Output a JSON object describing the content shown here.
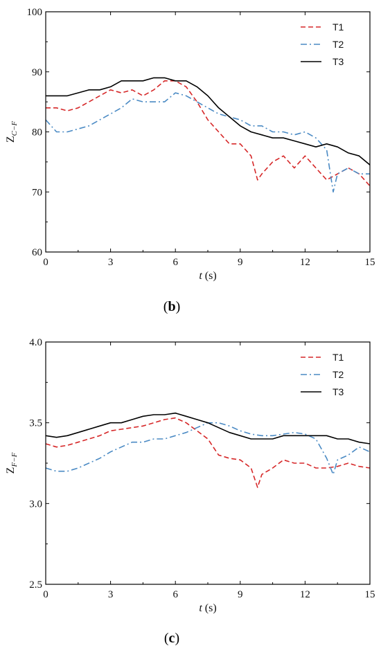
{
  "chart_data": [
    {
      "type": "line",
      "panel_label": "(b)",
      "xlabel": "t (s)",
      "ylabel": "Z_{C−F}",
      "xlim": [
        0,
        15
      ],
      "ylim": [
        60,
        100
      ],
      "xticks": [
        0,
        3,
        6,
        9,
        12,
        15
      ],
      "yticks": [
        60,
        70,
        80,
        90,
        100
      ],
      "legend_position": "top-right",
      "grid": false,
      "series": [
        {
          "name": "T1",
          "style": "dashed",
          "color": "#d62728",
          "x": [
            0,
            0.5,
            1,
            1.5,
            2,
            2.5,
            3,
            3.5,
            4,
            4.5,
            5,
            5.5,
            6,
            6.5,
            7,
            7.5,
            8,
            8.5,
            9,
            9.5,
            9.8,
            10,
            10.5,
            11,
            11.5,
            12,
            12.5,
            13,
            13.5,
            14,
            14.5,
            15
          ],
          "y": [
            84,
            84,
            83.5,
            84,
            85,
            86,
            87,
            86.5,
            87,
            86,
            87,
            88.5,
            88.5,
            87.5,
            85,
            82,
            80,
            78,
            78,
            76,
            72,
            73,
            75,
            76,
            74,
            76,
            74,
            72,
            73,
            74,
            73,
            71
          ]
        },
        {
          "name": "T2",
          "style": "dashdot",
          "color": "#4a8ac4",
          "x": [
            0,
            0.5,
            1,
            1.5,
            2,
            2.5,
            3,
            3.5,
            4,
            4.5,
            5,
            5.5,
            6,
            6.5,
            7,
            7.5,
            8,
            8.5,
            9,
            9.5,
            10,
            10.5,
            11,
            11.5,
            12,
            12.5,
            13,
            13.3,
            13.5,
            14,
            14.5,
            15
          ],
          "y": [
            82,
            80,
            80,
            80.5,
            81,
            82,
            83,
            84,
            85.5,
            85,
            85,
            85,
            86.5,
            86,
            85,
            84,
            83,
            82.5,
            82,
            81,
            81,
            80,
            80,
            79.5,
            80,
            79,
            77,
            70,
            73,
            74,
            73,
            73
          ]
        },
        {
          "name": "T3",
          "style": "solid",
          "color": "#000000",
          "x": [
            0,
            0.5,
            1,
            1.5,
            2,
            2.5,
            3,
            3.5,
            4,
            4.5,
            5,
            5.5,
            6,
            6.5,
            7,
            7.5,
            8,
            8.5,
            9,
            9.5,
            10,
            10.5,
            11,
            11.5,
            12,
            12.5,
            13,
            13.5,
            14,
            14.5,
            15
          ],
          "y": [
            86,
            86,
            86,
            86.5,
            87,
            87,
            87.5,
            88.5,
            88.5,
            88.5,
            89,
            89,
            88.5,
            88.5,
            87.5,
            86,
            84,
            82.5,
            81,
            80,
            79.5,
            79,
            79,
            78.5,
            78,
            77.5,
            78,
            77.5,
            76.5,
            76,
            74.5
          ]
        }
      ]
    },
    {
      "type": "line",
      "panel_label": "(c)",
      "xlabel": "t (s)",
      "ylabel": "Z_{F−F}",
      "xlim": [
        0,
        15
      ],
      "ylim": [
        2.5,
        4.0
      ],
      "xticks": [
        0,
        3,
        6,
        9,
        12,
        15
      ],
      "yticks": [
        2.5,
        3.0,
        3.5,
        4.0
      ],
      "legend_position": "top-right",
      "grid": false,
      "series": [
        {
          "name": "T1",
          "style": "dashed",
          "color": "#d62728",
          "x": [
            0,
            0.5,
            1,
            1.5,
            2,
            2.5,
            3,
            3.5,
            4,
            4.5,
            5,
            5.5,
            6,
            6.5,
            7,
            7.5,
            8,
            8.5,
            9,
            9.5,
            9.8,
            10,
            10.5,
            11,
            11.5,
            12,
            12.5,
            13,
            13.5,
            14,
            14.5,
            15
          ],
          "y": [
            3.37,
            3.35,
            3.36,
            3.38,
            3.4,
            3.42,
            3.45,
            3.46,
            3.47,
            3.48,
            3.5,
            3.52,
            3.53,
            3.5,
            3.45,
            3.4,
            3.3,
            3.28,
            3.27,
            3.22,
            3.1,
            3.18,
            3.22,
            3.27,
            3.25,
            3.25,
            3.22,
            3.22,
            3.23,
            3.25,
            3.23,
            3.22
          ]
        },
        {
          "name": "T2",
          "style": "dashdot",
          "color": "#4a8ac4",
          "x": [
            0,
            0.5,
            1,
            1.5,
            2,
            2.5,
            3,
            3.5,
            4,
            4.5,
            5,
            5.5,
            6,
            6.5,
            7,
            7.5,
            8,
            8.5,
            9,
            9.5,
            10,
            10.5,
            11,
            11.5,
            12,
            12.5,
            13,
            13.3,
            13.5,
            14,
            14.5,
            15
          ],
          "y": [
            3.22,
            3.2,
            3.2,
            3.22,
            3.25,
            3.28,
            3.32,
            3.35,
            3.38,
            3.38,
            3.4,
            3.4,
            3.42,
            3.44,
            3.47,
            3.5,
            3.5,
            3.48,
            3.45,
            3.43,
            3.42,
            3.42,
            3.43,
            3.44,
            3.43,
            3.4,
            3.28,
            3.18,
            3.27,
            3.3,
            3.35,
            3.32
          ]
        },
        {
          "name": "T3",
          "style": "solid",
          "color": "#000000",
          "x": [
            0,
            0.5,
            1,
            1.5,
            2,
            2.5,
            3,
            3.5,
            4,
            4.5,
            5,
            5.5,
            6,
            6.5,
            7,
            7.5,
            8,
            8.5,
            9,
            9.5,
            10,
            10.5,
            11,
            11.5,
            12,
            12.5,
            13,
            13.5,
            14,
            14.5,
            15
          ],
          "y": [
            3.42,
            3.41,
            3.42,
            3.44,
            3.46,
            3.48,
            3.5,
            3.5,
            3.52,
            3.54,
            3.55,
            3.55,
            3.56,
            3.54,
            3.52,
            3.5,
            3.47,
            3.44,
            3.42,
            3.4,
            3.4,
            3.4,
            3.42,
            3.42,
            3.42,
            3.42,
            3.42,
            3.4,
            3.4,
            3.38,
            3.37
          ]
        }
      ]
    }
  ]
}
